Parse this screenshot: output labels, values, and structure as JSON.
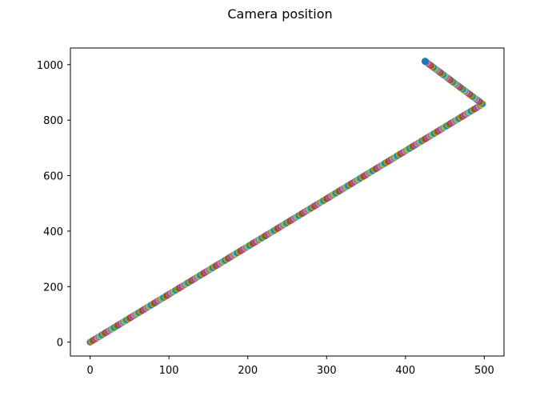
{
  "chart_data": {
    "type": "scatter",
    "title": "Camera position",
    "xlabel": "",
    "ylabel": "",
    "xlim": [
      -25,
      525
    ],
    "ylim": [
      -50,
      1060
    ],
    "xticks": [
      0,
      100,
      200,
      300,
      400,
      500
    ],
    "yticks": [
      0,
      200,
      400,
      600,
      800,
      1000
    ],
    "grid": false,
    "legend": "none",
    "marker": "circle",
    "point_colors_cycle": [
      "#1f77b4",
      "#ff7f0e",
      "#2ca02c",
      "#d62728",
      "#9467bd",
      "#8c564b",
      "#e377c2",
      "#7f7f7f",
      "#bcbd22",
      "#17becf"
    ],
    "path_segments": [
      {
        "from": [
          0,
          0
        ],
        "to": [
          498,
          858
        ],
        "approx_points": 320
      },
      {
        "from": [
          498,
          858
        ],
        "to": [
          425,
          1012
        ],
        "approx_points": 60
      }
    ],
    "last_point": {
      "x": 425,
      "y": 1012,
      "color": "#1f77b4"
    }
  }
}
